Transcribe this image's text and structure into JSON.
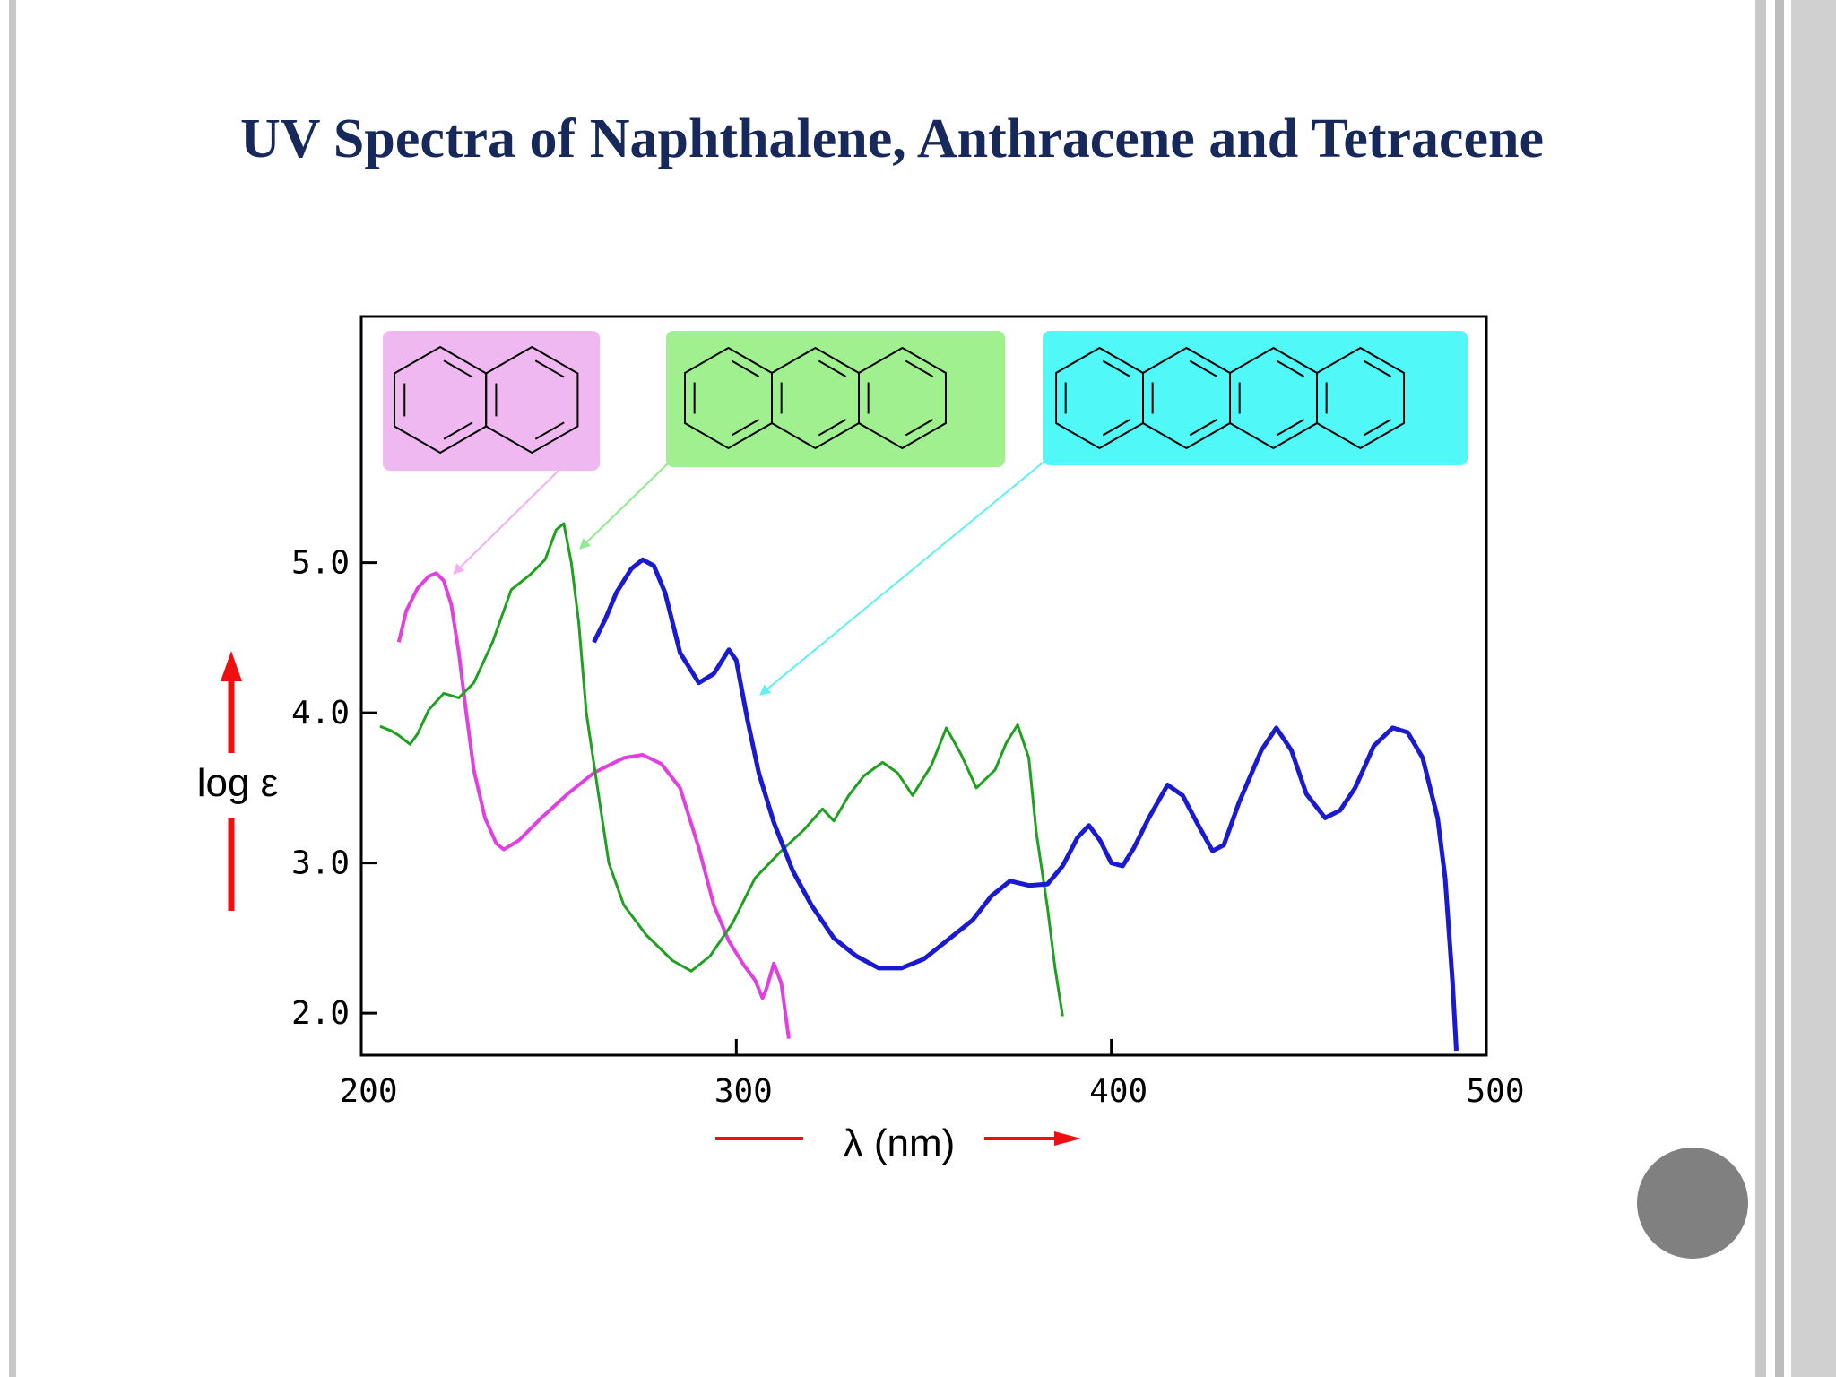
{
  "slide": {
    "title": "UV Spectra of Naphthalene, Anthracene and Tetracene"
  },
  "colors": {
    "title": "#17285a",
    "naphthalene": "#e040e0",
    "anthracene": "#20a020",
    "tetracene": "#1a1ad0",
    "naphthalene_box": "#f0b8f0",
    "anthracene_box": "#a0f090",
    "tetracene_box": "#50f8f8",
    "axis_arrow": "#ee1010"
  },
  "chart_data": {
    "type": "line",
    "title": "UV Spectra of Naphthalene, Anthracene and Tetracene",
    "xlabel": "λ (nm)",
    "ylabel": "log ε",
    "xlim": [
      200,
      500
    ],
    "ylim": [
      1.72,
      6.64
    ],
    "x_ticks": [
      {
        "value": 200,
        "label": "200"
      },
      {
        "value": 300,
        "label": "300"
      },
      {
        "value": 400,
        "label": "400"
      },
      {
        "value": 500,
        "label": "500"
      }
    ],
    "y_ticks": [
      {
        "value": 2.0,
        "label": "2.0"
      },
      {
        "value": 3.0,
        "label": "3.0"
      },
      {
        "value": 4.0,
        "label": "4.0"
      },
      {
        "value": 5.0,
        "label": "5.0"
      }
    ],
    "grid": false,
    "legend": "molecule structure images above curves",
    "series": [
      {
        "key": "naphthalene",
        "points": [
          [
            210,
            4.47
          ],
          [
            212,
            4.68
          ],
          [
            215,
            4.83
          ],
          [
            218,
            4.91
          ],
          [
            220,
            4.93
          ],
          [
            222,
            4.88
          ],
          [
            224,
            4.72
          ],
          [
            226,
            4.4
          ],
          [
            228,
            4.0
          ],
          [
            230,
            3.62
          ],
          [
            233,
            3.3
          ],
          [
            236,
            3.13
          ],
          [
            238,
            3.09
          ],
          [
            242,
            3.15
          ],
          [
            248,
            3.3
          ],
          [
            255,
            3.46
          ],
          [
            262,
            3.6
          ],
          [
            270,
            3.7
          ],
          [
            275,
            3.72
          ],
          [
            280,
            3.66
          ],
          [
            285,
            3.5
          ],
          [
            290,
            3.1
          ],
          [
            294,
            2.72
          ],
          [
            298,
            2.48
          ],
          [
            302,
            2.32
          ],
          [
            305,
            2.22
          ],
          [
            307,
            2.1
          ],
          [
            308,
            2.16
          ],
          [
            310,
            2.33
          ],
          [
            312,
            2.2
          ],
          [
            314,
            1.83
          ]
        ]
      },
      {
        "key": "anthracene",
        "points": [
          [
            205,
            3.91
          ],
          [
            208,
            3.88
          ],
          [
            210,
            3.85
          ],
          [
            213,
            3.79
          ],
          [
            215,
            3.86
          ],
          [
            218,
            4.02
          ],
          [
            222,
            4.13
          ],
          [
            226,
            4.1
          ],
          [
            230,
            4.2
          ],
          [
            235,
            4.47
          ],
          [
            240,
            4.82
          ],
          [
            245,
            4.92
          ],
          [
            249,
            5.02
          ],
          [
            252,
            5.22
          ],
          [
            254,
            5.26
          ],
          [
            256,
            5.0
          ],
          [
            258,
            4.6
          ],
          [
            260,
            4.0
          ],
          [
            263,
            3.5
          ],
          [
            266,
            3.0
          ],
          [
            270,
            2.72
          ],
          [
            276,
            2.52
          ],
          [
            283,
            2.35
          ],
          [
            288,
            2.28
          ],
          [
            293,
            2.38
          ],
          [
            299,
            2.6
          ],
          [
            305,
            2.9
          ],
          [
            312,
            3.08
          ],
          [
            318,
            3.22
          ],
          [
            323,
            3.36
          ],
          [
            326,
            3.28
          ],
          [
            330,
            3.45
          ],
          [
            334,
            3.58
          ],
          [
            339,
            3.67
          ],
          [
            343,
            3.6
          ],
          [
            347,
            3.45
          ],
          [
            352,
            3.65
          ],
          [
            356,
            3.9
          ],
          [
            360,
            3.72
          ],
          [
            364,
            3.5
          ],
          [
            369,
            3.62
          ],
          [
            372,
            3.8
          ],
          [
            375,
            3.92
          ],
          [
            378,
            3.7
          ],
          [
            380,
            3.2
          ],
          [
            383,
            2.7
          ],
          [
            385,
            2.3
          ],
          [
            387,
            1.98
          ]
        ]
      },
      {
        "key": "tetracene",
        "points": [
          [
            262,
            4.47
          ],
          [
            265,
            4.62
          ],
          [
            268,
            4.8
          ],
          [
            272,
            4.96
          ],
          [
            275,
            5.02
          ],
          [
            278,
            4.98
          ],
          [
            281,
            4.8
          ],
          [
            285,
            4.4
          ],
          [
            290,
            4.2
          ],
          [
            294,
            4.26
          ],
          [
            298,
            4.42
          ],
          [
            300,
            4.35
          ],
          [
            303,
            3.95
          ],
          [
            306,
            3.6
          ],
          [
            310,
            3.27
          ],
          [
            315,
            2.95
          ],
          [
            320,
            2.72
          ],
          [
            326,
            2.5
          ],
          [
            332,
            2.38
          ],
          [
            338,
            2.3
          ],
          [
            344,
            2.3
          ],
          [
            350,
            2.36
          ],
          [
            357,
            2.5
          ],
          [
            363,
            2.62
          ],
          [
            368,
            2.78
          ],
          [
            373,
            2.88
          ],
          [
            378,
            2.85
          ],
          [
            383,
            2.86
          ],
          [
            387,
            2.98
          ],
          [
            391,
            3.17
          ],
          [
            394,
            3.25
          ],
          [
            397,
            3.15
          ],
          [
            400,
            3.0
          ],
          [
            403,
            2.98
          ],
          [
            406,
            3.1
          ],
          [
            410,
            3.3
          ],
          [
            415,
            3.52
          ],
          [
            419,
            3.45
          ],
          [
            423,
            3.26
          ],
          [
            427,
            3.08
          ],
          [
            430,
            3.12
          ],
          [
            434,
            3.4
          ],
          [
            440,
            3.75
          ],
          [
            444,
            3.9
          ],
          [
            448,
            3.75
          ],
          [
            452,
            3.46
          ],
          [
            457,
            3.3
          ],
          [
            461,
            3.35
          ],
          [
            465,
            3.5
          ],
          [
            470,
            3.78
          ],
          [
            475,
            3.9
          ],
          [
            479,
            3.87
          ],
          [
            483,
            3.7
          ],
          [
            487,
            3.3
          ],
          [
            489,
            2.9
          ],
          [
            491,
            2.2
          ],
          [
            492,
            1.75
          ]
        ]
      }
    ]
  }
}
